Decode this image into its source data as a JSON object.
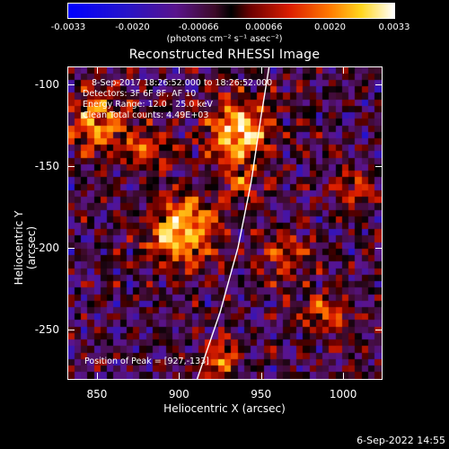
{
  "chart_data": {
    "type": "heatmap",
    "title": "Reconstructed RHESSI Image",
    "xlabel": "Heliocentric X (arcsec)",
    "ylabel": "Heliocentric Y (arcsec)",
    "xlim": [
      832,
      1024
    ],
    "ylim": [
      -281,
      -89
    ],
    "x_ticks": [
      "850",
      "900",
      "950",
      "1000"
    ],
    "x_tick_values": [
      850,
      900,
      950,
      1000
    ],
    "y_ticks": [
      "-100",
      "-150",
      "-200",
      "-250"
    ],
    "y_tick_values": [
      -100,
      -150,
      -200,
      -250
    ],
    "colorbar": {
      "units": "(photons cm⁻² s⁻¹ asec⁻²)",
      "ticks": [
        "-0.0033",
        "-0.0020",
        "-0.00066",
        "0.00066",
        "0.0020",
        "0.0033"
      ],
      "tick_values": [
        -0.0033,
        -0.002,
        -0.00066,
        0.00066,
        0.002,
        0.0033
      ],
      "range": [
        -0.0033,
        0.0033
      ]
    },
    "annotations": {
      "time_range": "8-Sep-2017 18:26:52.000 to 18:26:52.000",
      "detectors": "Detectors: 3F 6F 8F, AF 10",
      "energy": "Energy Range: 12.0 - 25.0 keV",
      "method": "Clean     Total counts: 4.49E+03",
      "peak": "Position of Peak = [927,-133]"
    },
    "limb_curve": [
      [
        911,
        -281
      ],
      [
        925,
        -240
      ],
      [
        936,
        -200
      ],
      [
        944,
        -160
      ],
      [
        950,
        -120
      ],
      [
        955,
        -89
      ]
    ],
    "sources": [
      {
        "x": 937,
        "y": -128,
        "sigma": 14,
        "amp": 1.0
      },
      {
        "x": 902,
        "y": -190,
        "sigma": 15,
        "amp": 0.95
      },
      {
        "x": 850,
        "y": -123,
        "sigma": 13,
        "amp": 0.75
      },
      {
        "x": 880,
        "y": -140,
        "sigma": 10,
        "amp": 0.55
      },
      {
        "x": 965,
        "y": -205,
        "sigma": 11,
        "amp": 0.55
      },
      {
        "x": 1010,
        "y": -165,
        "sigma": 10,
        "amp": 0.45
      },
      {
        "x": 990,
        "y": -240,
        "sigma": 10,
        "amp": 0.55
      },
      {
        "x": 925,
        "y": -268,
        "sigma": 9,
        "amp": 0.6
      },
      {
        "x": 940,
        "y": -160,
        "sigma": 8,
        "amp": 0.5
      }
    ]
  },
  "footer": {
    "timestamp": "6-Sep-2022 14:55"
  }
}
